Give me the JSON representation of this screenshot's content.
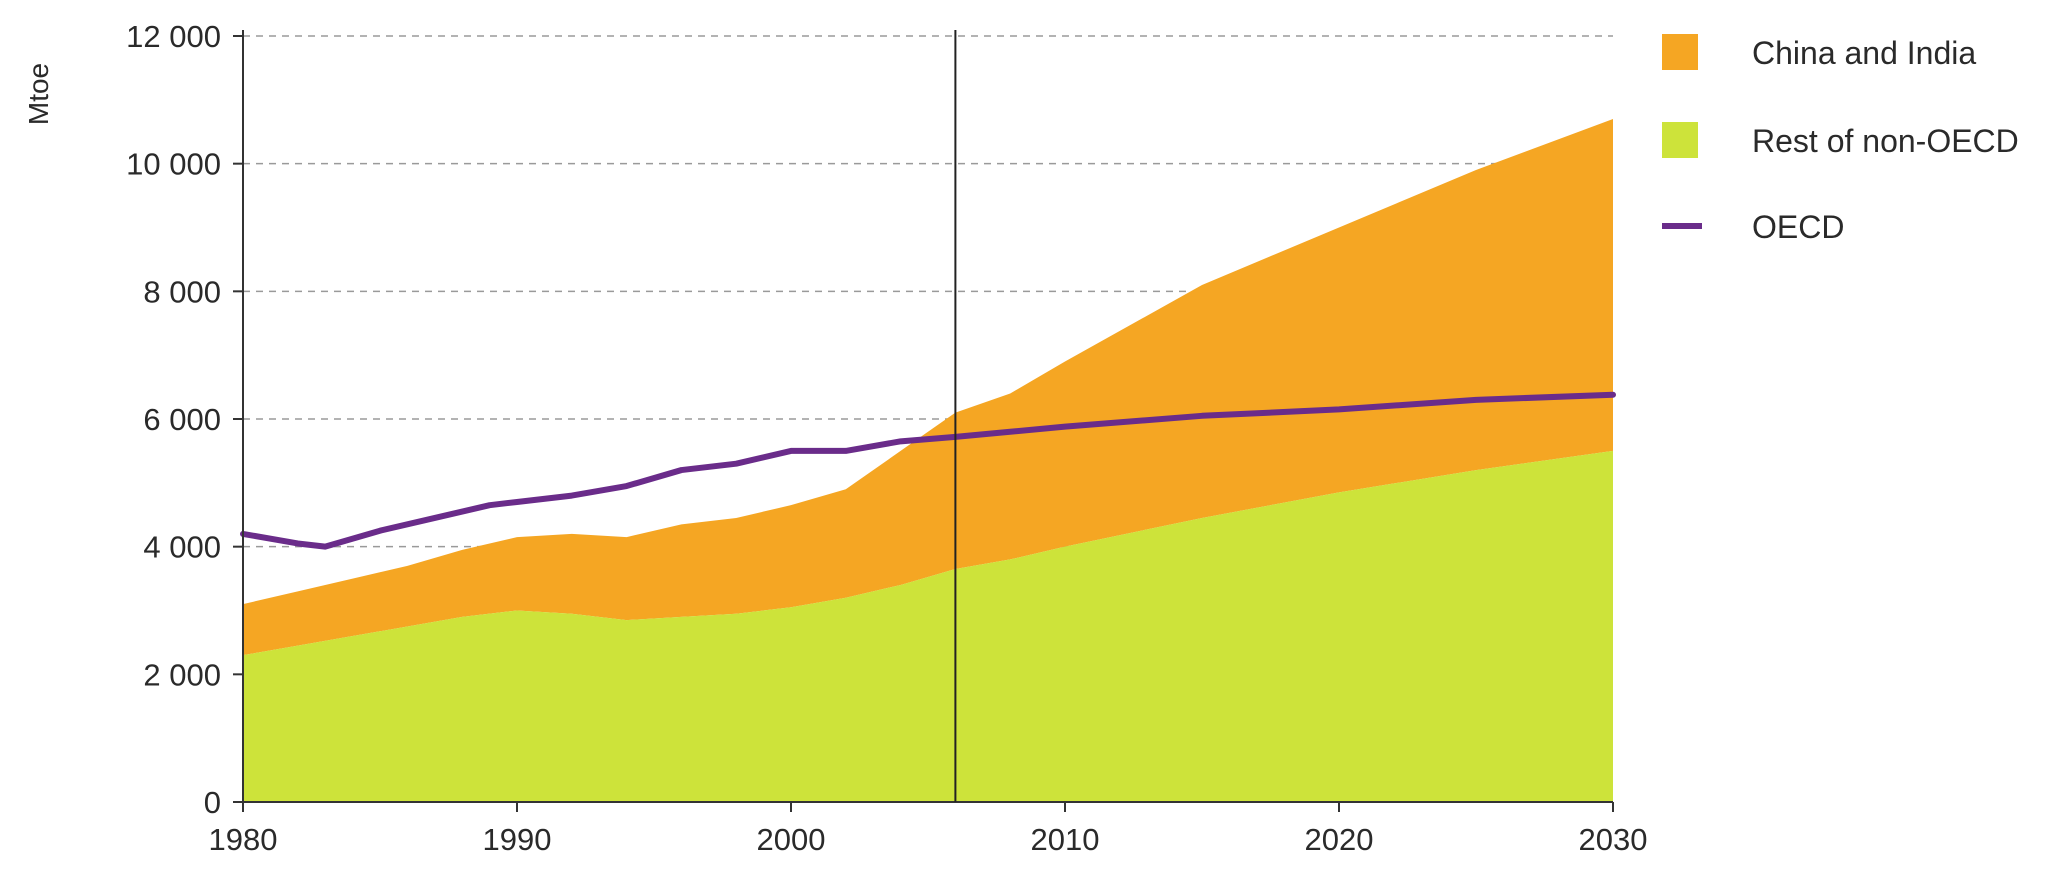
{
  "chart_data": {
    "type": "area",
    "ylabel": "Mtoe",
    "xlim": [
      1980,
      2030
    ],
    "ylim": [
      0,
      12000
    ],
    "x_ticks": [
      1980,
      1990,
      2000,
      2010,
      2020,
      2030
    ],
    "y_ticks": [
      0,
      2000,
      4000,
      6000,
      8000,
      10000,
      12000
    ],
    "x_tick_labels": [
      "1980",
      "1990",
      "2000",
      "2010",
      "2020",
      "2030"
    ],
    "y_tick_labels": [
      "0",
      "2 000",
      "4 000",
      "6 000",
      "8 000",
      "10 000",
      "12 000"
    ],
    "grid": "horizontal dashed",
    "legend": "right",
    "projection_divider_x": 2006,
    "colors": {
      "china_india": "#f5a623",
      "rest_non_oecd": "#cde33a",
      "oecd": "#6a2c8a"
    },
    "series": [
      {
        "name": "Rest of non-OECD",
        "kind": "stacked-area",
        "color": "#cde33a",
        "x": [
          1980,
          1982,
          1984,
          1986,
          1988,
          1990,
          1992,
          1994,
          1996,
          1998,
          2000,
          2002,
          2004,
          2006,
          2008,
          2010,
          2015,
          2020,
          2025,
          2030
        ],
        "values": [
          2300,
          2450,
          2600,
          2750,
          2900,
          3000,
          2950,
          2850,
          2900,
          2950,
          3050,
          3200,
          3400,
          3650,
          3800,
          4000,
          4450,
          4850,
          5200,
          5500
        ]
      },
      {
        "name": "China and India",
        "kind": "stacked-area",
        "color": "#f5a623",
        "x": [
          1980,
          1982,
          1984,
          1986,
          1988,
          1990,
          1992,
          1994,
          1996,
          1998,
          2000,
          2002,
          2004,
          2006,
          2008,
          2010,
          2015,
          2020,
          2025,
          2030
        ],
        "values": [
          800,
          850,
          900,
          950,
          1050,
          1150,
          1250,
          1300,
          1450,
          1500,
          1600,
          1700,
          2100,
          2450,
          2600,
          2900,
          3650,
          4150,
          4700,
          5200
        ]
      },
      {
        "name": "OECD",
        "kind": "line",
        "color": "#6a2c8a",
        "x": [
          1980,
          1982,
          1983,
          1985,
          1987,
          1989,
          1990,
          1992,
          1994,
          1996,
          1998,
          2000,
          2002,
          2004,
          2006,
          2008,
          2010,
          2015,
          2020,
          2025,
          2030
        ],
        "values": [
          4200,
          4050,
          4000,
          4250,
          4450,
          4650,
          4700,
          4800,
          4950,
          5200,
          5300,
          5500,
          5500,
          5650,
          5720,
          5800,
          5880,
          6050,
          6150,
          6300,
          6380
        ]
      }
    ]
  }
}
